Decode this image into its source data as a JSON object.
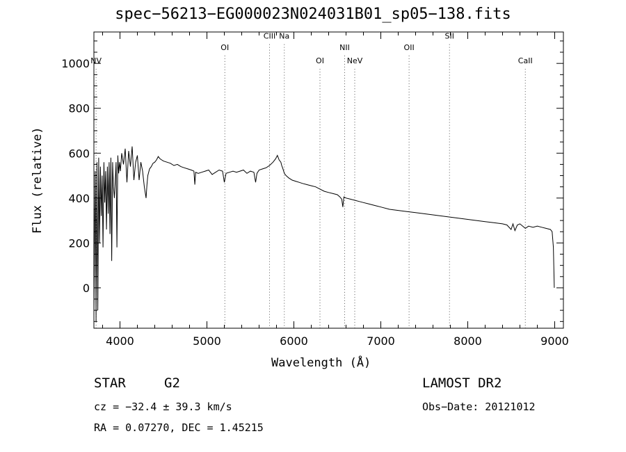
{
  "chart_data": {
    "type": "line",
    "title": "spec−56213−EG000023N024031B01_sp05−138.fits",
    "xlabel": "Wavelength (Å)",
    "ylabel": "Flux (relative)",
    "xlim": [
      3700,
      9100
    ],
    "ylim": [
      -180,
      1140
    ],
    "xticks": [
      4000,
      5000,
      6000,
      7000,
      8000,
      9000
    ],
    "yticks": [
      0,
      200,
      400,
      600,
      800,
      1000
    ],
    "grid": false,
    "series": [
      {
        "x": [
          3700,
          3715,
          3725,
          3735,
          3745,
          3755,
          3765,
          3775,
          3785,
          3795,
          3805,
          3815,
          3825,
          3835,
          3845,
          3855,
          3865,
          3875,
          3885,
          3895,
          3905,
          3915,
          3925,
          3935,
          3945,
          3955,
          3965,
          3975,
          3985,
          3995,
          4005,
          4020,
          4040,
          4060,
          4080,
          4100,
          4120,
          4140,
          4160,
          4180,
          4200,
          4220,
          4240,
          4260,
          4280,
          4300,
          4310,
          4320,
          4340,
          4360,
          4380,
          4400,
          4420,
          4440,
          4460,
          4480,
          4500,
          4540,
          4580,
          4620,
          4660,
          4700,
          4740,
          4780,
          4820,
          4850,
          4861,
          4870,
          4900,
          4940,
          4980,
          5020,
          5060,
          5100,
          5140,
          5180,
          5200,
          5220,
          5260,
          5300,
          5340,
          5380,
          5420,
          5460,
          5500,
          5540,
          5560,
          5575,
          5600,
          5640,
          5680,
          5720,
          5760,
          5790,
          5810,
          5830,
          5850,
          5860,
          5870,
          5890,
          5910,
          5940,
          5980,
          6020,
          6060,
          6100,
          6150,
          6200,
          6250,
          6300,
          6350,
          6400,
          6450,
          6500,
          6530,
          6550,
          6563,
          6575,
          6600,
          6650,
          6700,
          6750,
          6800,
          6850,
          6900,
          6950,
          7000,
          7100,
          7200,
          7300,
          7400,
          7500,
          7600,
          7700,
          7800,
          7900,
          8000,
          8100,
          8200,
          8300,
          8400,
          8450,
          8498,
          8520,
          8542,
          8570,
          8600,
          8662,
          8700,
          8750,
          8800,
          8850,
          8900,
          8950,
          8970,
          8985,
          8995
        ],
        "y": [
          -120,
          520,
          -150,
          560,
          -100,
          580,
          200,
          540,
          320,
          500,
          180,
          560,
          380,
          520,
          260,
          540,
          330,
          560,
          240,
          580,
          120,
          560,
          450,
          400,
          470,
          560,
          180,
          590,
          510,
          560,
          520,
          600,
          550,
          620,
          470,
          610,
          540,
          630,
          480,
          560,
          590,
          480,
          560,
          520,
          450,
          400,
          460,
          500,
          530,
          540,
          555,
          560,
          570,
          585,
          575,
          570,
          565,
          560,
          555,
          545,
          550,
          540,
          535,
          530,
          525,
          520,
          460,
          515,
          510,
          515,
          520,
          525,
          505,
          515,
          525,
          520,
          470,
          510,
          515,
          520,
          515,
          520,
          525,
          510,
          520,
          515,
          470,
          510,
          525,
          530,
          535,
          545,
          560,
          575,
          590,
          570,
          560,
          545,
          535,
          510,
          500,
          490,
          480,
          475,
          470,
          465,
          460,
          455,
          450,
          440,
          430,
          425,
          420,
          415,
          405,
          395,
          360,
          405,
          400,
          395,
          390,
          385,
          380,
          375,
          370,
          365,
          360,
          350,
          345,
          340,
          335,
          330,
          325,
          320,
          315,
          310,
          305,
          300,
          295,
          290,
          285,
          280,
          260,
          285,
          255,
          280,
          285,
          265,
          275,
          270,
          275,
          270,
          265,
          260,
          250,
          180,
          0
        ]
      }
    ],
    "line_markers": [
      {
        "label": "NV",
        "x": 3725,
        "y": 1000
      },
      {
        "label": "OI",
        "x": 5206,
        "y": 1060
      },
      {
        "label": "CIII",
        "x": 5720,
        "y": 1110
      },
      {
        "label": "Na",
        "x": 5890,
        "y": 1110
      },
      {
        "label": "OI",
        "x": 6300,
        "y": 1000
      },
      {
        "label": "NII",
        "x": 6584,
        "y": 1060
      },
      {
        "label": "NeV",
        "x": 6700,
        "y": 1000
      },
      {
        "label": "OII",
        "x": 7325,
        "y": 1060
      },
      {
        "label": "SII",
        "x": 7790,
        "y": 1110
      },
      {
        "label": "CaII",
        "x": 8662,
        "y": 1000
      }
    ]
  },
  "info": {
    "object_type": "STAR",
    "subclass": "G2",
    "survey": "LAMOST DR2",
    "cz": "cz = −32.4 ± 39.3 km/s",
    "obs_date": "Obs−Date: 20121012",
    "coords": "RA =    0.07270, DEC =    1.45215"
  }
}
